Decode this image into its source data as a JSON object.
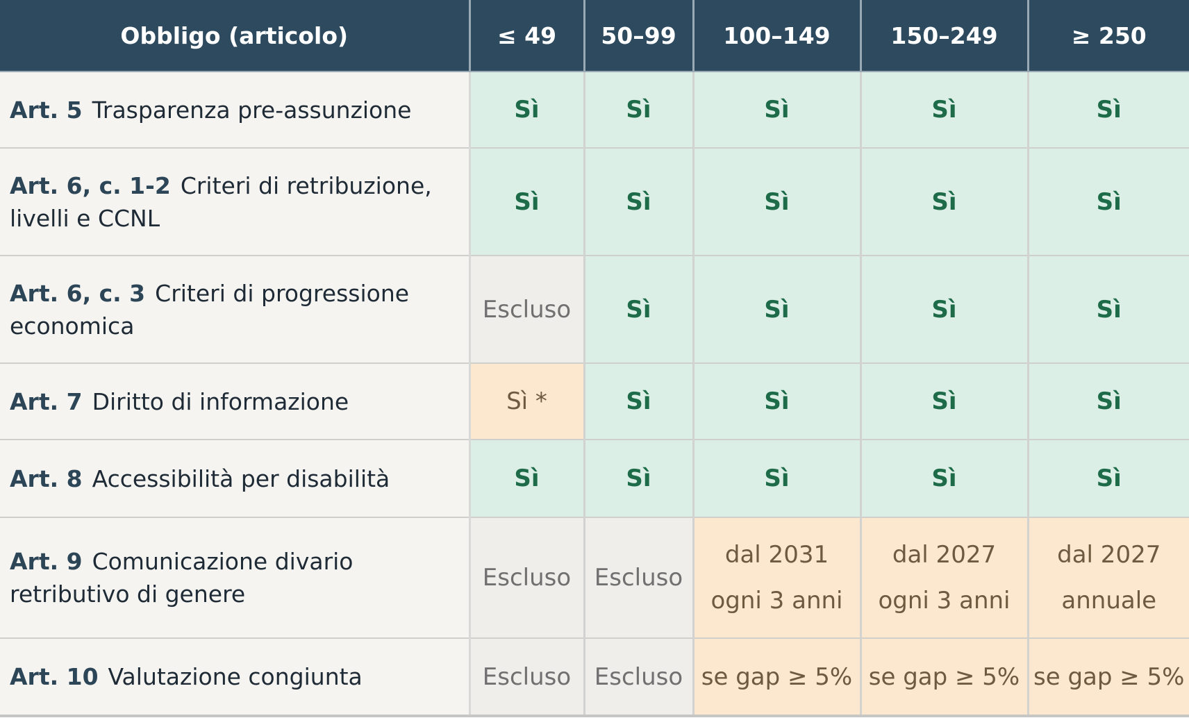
{
  "header": {
    "obligation": "Obbligo (articolo)",
    "bands": [
      "≤ 49",
      "50–99",
      "100–149",
      "150–249",
      "≥ 250"
    ]
  },
  "rows": [
    {
      "article": "Art. 5",
      "text": "Trasparenza pre-assunzione",
      "cells": [
        "Sì",
        "Sì",
        "Sì",
        "Sì",
        "Sì"
      ]
    },
    {
      "article": "Art. 6, c. 1-2",
      "text": "Criteri di retribuzione, livelli e CCNL",
      "cells": [
        "Sì",
        "Sì",
        "Sì",
        "Sì",
        "Sì"
      ]
    },
    {
      "article": "Art. 6, c. 3",
      "text": "Criteri di progressione economica",
      "cells": [
        "Escluso",
        "Sì",
        "Sì",
        "Sì",
        "Sì"
      ]
    },
    {
      "article": "Art. 7",
      "text": "Diritto di informazione",
      "cells": [
        "Sì *",
        "Sì",
        "Sì",
        "Sì",
        "Sì"
      ]
    },
    {
      "article": "Art. 8",
      "text": "Accessibilità per disabilità",
      "cells": [
        "Sì",
        "Sì",
        "Sì",
        "Sì",
        "Sì"
      ]
    },
    {
      "article": "Art. 9",
      "text": "Comunicazione divario retributivo di genere",
      "cells": [
        "Escluso",
        "Escluso",
        "dal 2031",
        "dal 2027",
        "dal 2027"
      ],
      "cells_line2": [
        "",
        "",
        "ogni 3 anni",
        "ogni 3 anni",
        "annuale"
      ]
    },
    {
      "article": "Art. 10",
      "text": "Valutazione congiunta",
      "cells": [
        "Escluso",
        "Escluso",
        "se gap ≥ 5%",
        "se gap ≥ 5%",
        "se gap ≥ 5%"
      ]
    }
  ],
  "colors": {
    "header_bg": "#2e4a5f",
    "yes_bg": "#dcefe6",
    "yes_text": "#1d6b48",
    "excluded_bg": "#efeeea",
    "conditional_bg": "#fce8cf",
    "obligation_bg": "#f5f4f0"
  }
}
